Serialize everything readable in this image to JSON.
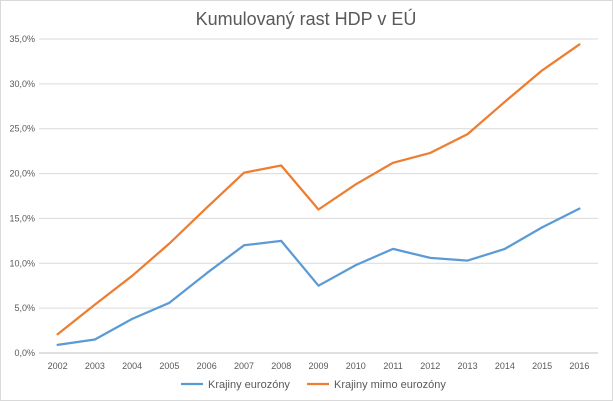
{
  "chart_data": {
    "type": "line",
    "title": "Kumulovaný rast HDP v EÚ",
    "xlabel": "",
    "ylabel": "",
    "categories": [
      "2002",
      "2003",
      "2004",
      "2005",
      "2006",
      "2007",
      "2008",
      "2009",
      "2010",
      "2011",
      "2012",
      "2013",
      "2014",
      "2015",
      "2016"
    ],
    "ylim": [
      0,
      35
    ],
    "yticks": [
      0,
      5,
      10,
      15,
      20,
      25,
      30,
      35
    ],
    "ytick_labels": [
      "0,0%",
      "5,0%",
      "10,0%",
      "15,0%",
      "20,0%",
      "25,0%",
      "30,0%",
      "35,0%"
    ],
    "grid": true,
    "legend_position": "bottom",
    "series": [
      {
        "name": "Krajiny eurozóny",
        "color": "#5b9bd5",
        "values": [
          0.9,
          1.5,
          3.8,
          5.6,
          8.9,
          12.0,
          12.5,
          7.5,
          9.8,
          11.6,
          10.6,
          10.3,
          11.6,
          14.0,
          16.1
        ]
      },
      {
        "name": "Krajiny mimo eurozóny",
        "color": "#ed7d31",
        "values": [
          2.1,
          5.4,
          8.6,
          12.2,
          16.2,
          20.1,
          20.9,
          16.0,
          18.8,
          21.2,
          22.3,
          24.4,
          28.0,
          31.5,
          34.4
        ]
      }
    ]
  }
}
